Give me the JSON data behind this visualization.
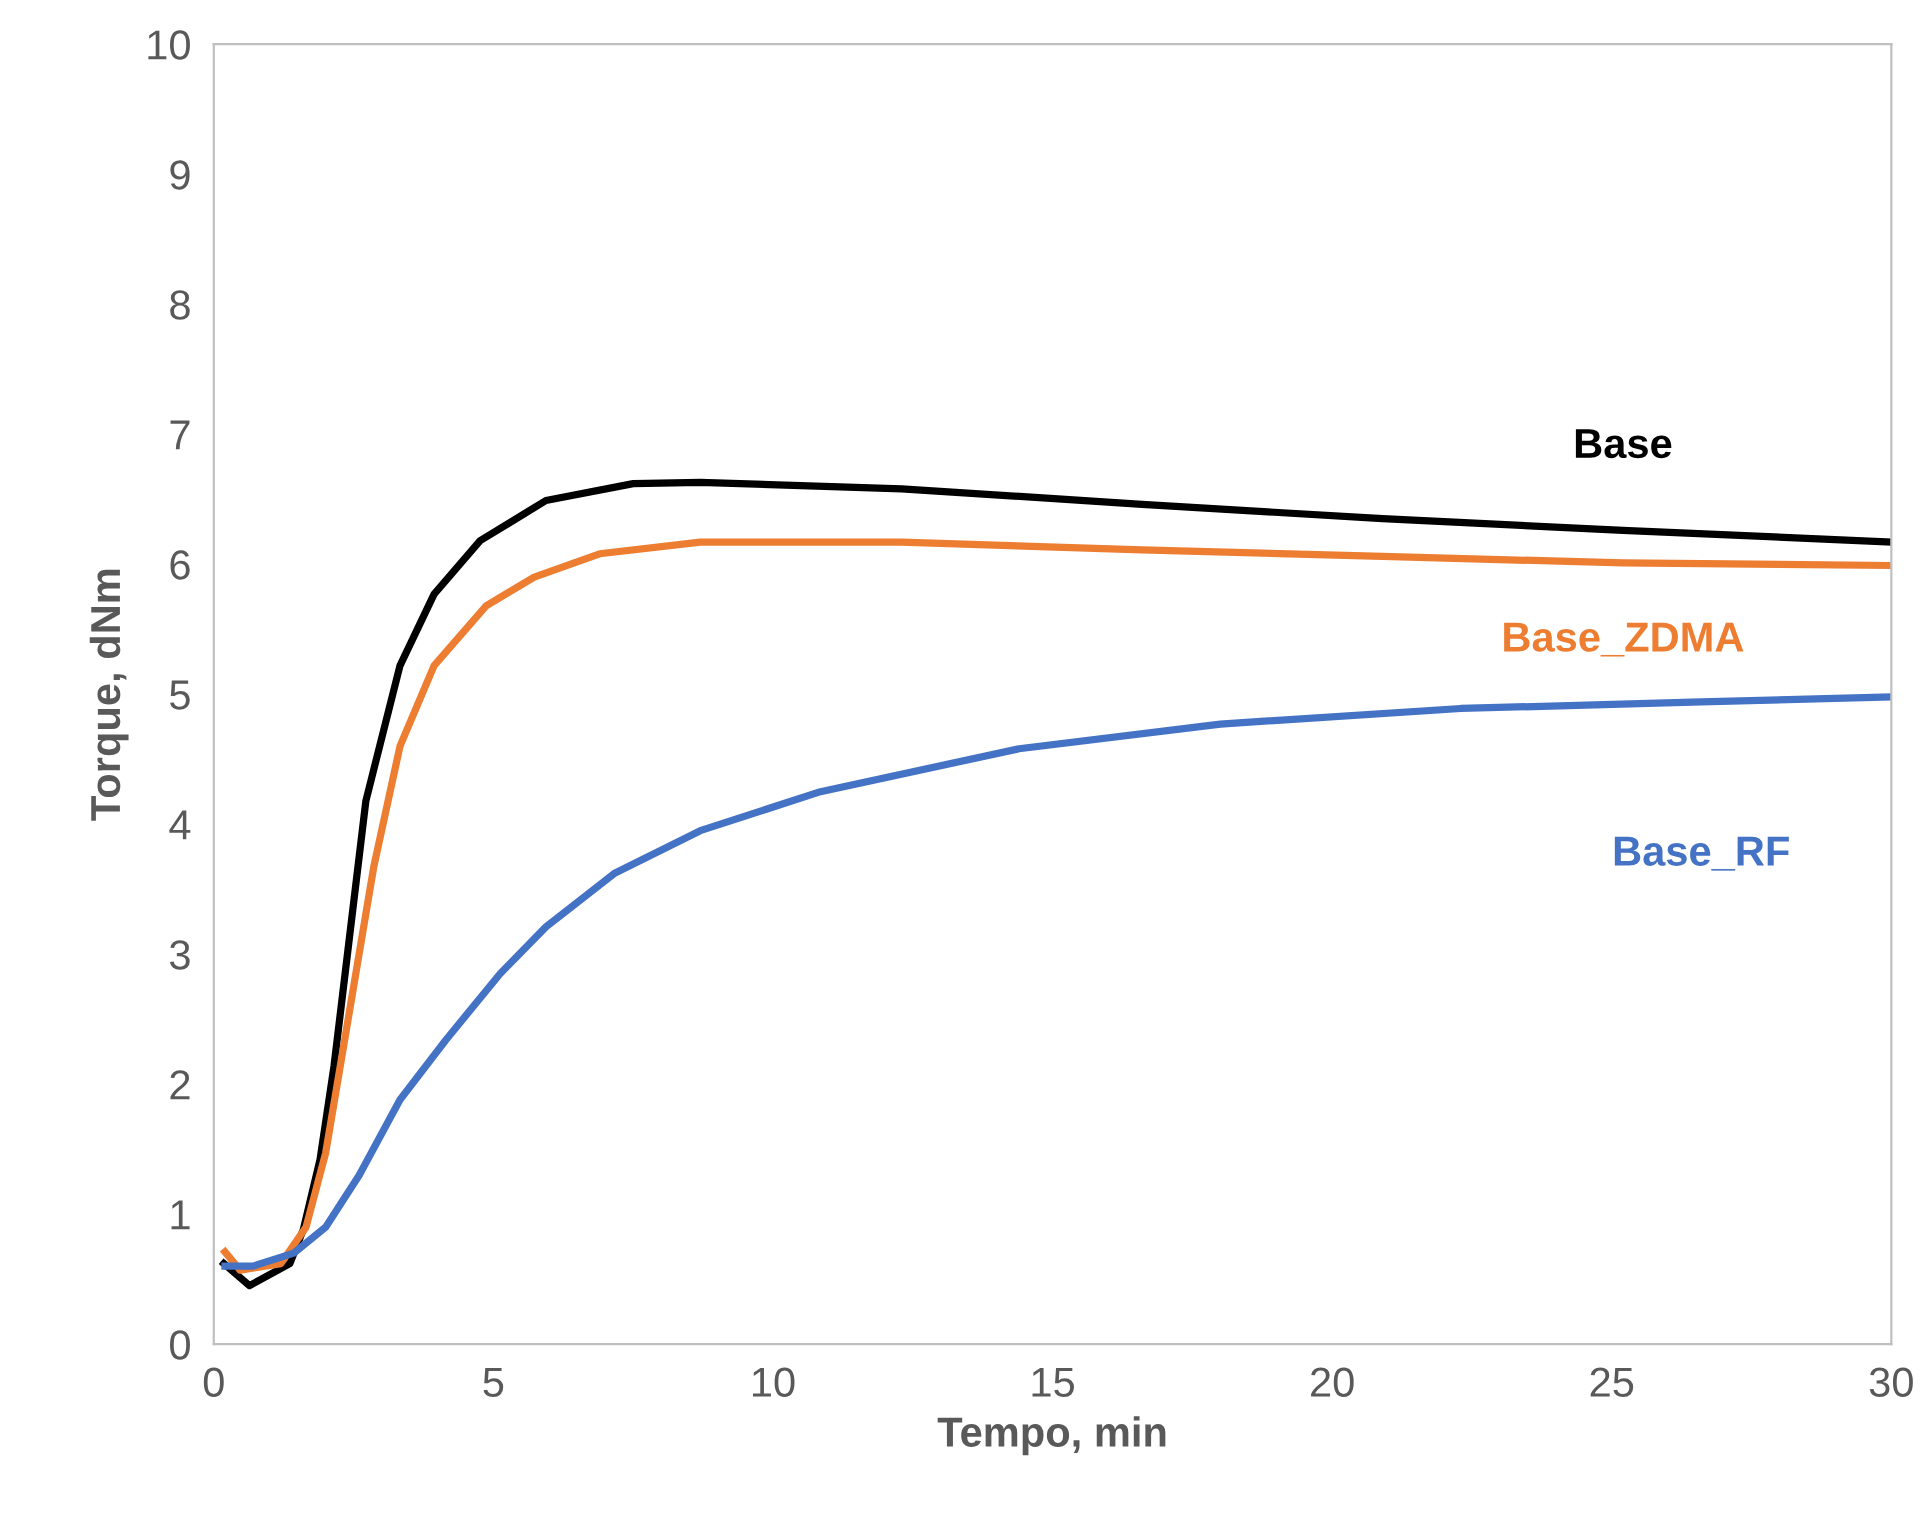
{
  "chart_data": {
    "type": "line",
    "xlabel": "Tempo, min",
    "ylabel": "Torque, dNm",
    "xlim": [
      0,
      30
    ],
    "ylim": [
      0,
      10
    ],
    "xticks": [
      0,
      5,
      10,
      15,
      20,
      25,
      30
    ],
    "yticks": [
      0,
      1,
      2,
      3,
      4,
      5,
      6,
      7,
      8,
      9,
      10
    ],
    "grid": false,
    "legend": false,
    "marker": "none",
    "line_style": "solid",
    "series": [
      {
        "name": "Base",
        "color": "#000000",
        "x": [
          0.18,
          0.64,
          1.36,
          1.6,
          1.9,
          2.15,
          2.72,
          3.33,
          3.94,
          4.76,
          5.94,
          7.5,
          8.7,
          12.3,
          16.6,
          20.9,
          25.2,
          30
        ],
        "values": [
          0.62,
          0.45,
          0.62,
          0.88,
          1.42,
          2.14,
          4.18,
          5.22,
          5.77,
          6.18,
          6.49,
          6.62,
          6.63,
          6.58,
          6.46,
          6.35,
          6.26,
          6.17
        ]
      },
      {
        "name": "Base_ZDMA",
        "color": "#ed7d31",
        "x": [
          0.2,
          0.47,
          1.2,
          1.65,
          2.0,
          2.36,
          2.86,
          3.33,
          3.94,
          4.87,
          5.73,
          6.9,
          8.7,
          12.3,
          16.6,
          20.9,
          25.2,
          30
        ],
        "values": [
          0.71,
          0.57,
          0.62,
          0.9,
          1.47,
          2.39,
          3.67,
          4.6,
          5.22,
          5.68,
          5.9,
          6.08,
          6.17,
          6.17,
          6.11,
          6.06,
          6.01,
          5.99
        ]
      },
      {
        "name": "Base_RF",
        "color": "#4472c4",
        "x": [
          0.2,
          0.7,
          1.43,
          2.0,
          2.6,
          3.33,
          4.15,
          5.12,
          5.94,
          7.16,
          8.7,
          10.85,
          14.4,
          18.0,
          22.3,
          26.6,
          30
        ],
        "values": [
          0.6,
          0.6,
          0.7,
          0.9,
          1.3,
          1.88,
          2.34,
          2.85,
          3.21,
          3.62,
          3.95,
          4.25,
          4.58,
          4.77,
          4.89,
          4.94,
          4.98
        ]
      }
    ]
  }
}
